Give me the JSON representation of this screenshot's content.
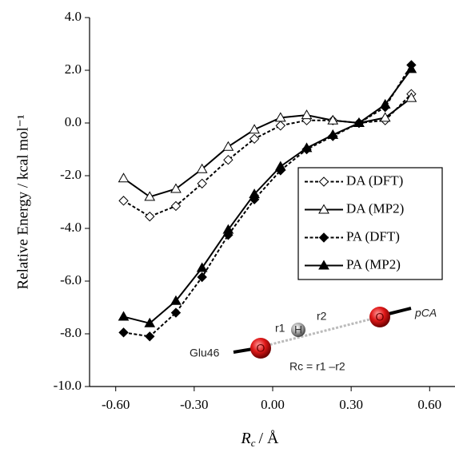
{
  "chart_data": {
    "type": "line",
    "ylabel": "Relative Energy / kcal mol⁻¹",
    "xlabel": {
      "symbol": "R",
      "subscript": "c",
      "unit": "/ Å"
    },
    "x": [
      -0.57,
      -0.47,
      -0.37,
      -0.27,
      -0.17,
      -0.07,
      0.03,
      0.13,
      0.23,
      0.33,
      0.43,
      0.53
    ],
    "series": [
      {
        "name": "DA (DFT)",
        "color": "#000000",
        "dash": true,
        "marker": "diamond",
        "filled": false,
        "values": [
          -2.95,
          -3.55,
          -3.15,
          -2.3,
          -1.4,
          -0.6,
          -0.1,
          0.1,
          0.1,
          0.0,
          0.1,
          1.1
        ]
      },
      {
        "name": "DA (MP2)",
        "color": "#000000",
        "dash": false,
        "marker": "triangle",
        "filled": false,
        "values": [
          -2.1,
          -2.8,
          -2.5,
          -1.75,
          -0.9,
          -0.25,
          0.2,
          0.3,
          0.1,
          0.0,
          0.2,
          0.95
        ]
      },
      {
        "name": "PA (DFT)",
        "color": "#000000",
        "dash": true,
        "marker": "diamond",
        "filled": true,
        "values": [
          -7.95,
          -8.1,
          -7.2,
          -5.85,
          -4.25,
          -2.9,
          -1.8,
          -1.0,
          -0.5,
          0.0,
          0.6,
          2.2
        ]
      },
      {
        "name": "PA (MP2)",
        "color": "#000000",
        "dash": false,
        "marker": "triangle",
        "filled": true,
        "values": [
          -7.35,
          -7.6,
          -6.75,
          -5.5,
          -4.05,
          -2.7,
          -1.65,
          -0.95,
          -0.45,
          0.0,
          0.7,
          2.05
        ]
      }
    ],
    "xlim": [
      -0.7,
      0.7
    ],
    "ylim": [
      -10.0,
      4.0
    ],
    "xticks": [
      {
        "value": -0.6,
        "label": "-0.60"
      },
      {
        "value": -0.3,
        "label": "-0.30"
      },
      {
        "value": 0,
        "label": "0.00"
      },
      {
        "value": 0.3,
        "label": "0.30"
      },
      {
        "value": 0.6,
        "label": "0.60"
      }
    ],
    "yticks": [
      {
        "value": -10,
        "label": "-10.0"
      },
      {
        "value": -8,
        "label": "-8.0"
      },
      {
        "value": -6,
        "label": "-6.0"
      },
      {
        "value": -4,
        "label": "-4.0"
      },
      {
        "value": -2,
        "label": "-2.0"
      },
      {
        "value": 0,
        "label": "0.0"
      },
      {
        "value": 2,
        "label": "2.0"
      },
      {
        "value": 4,
        "label": "4.0"
      }
    ],
    "grid": false,
    "legend": "center right",
    "inset": {
      "left_group": "Glu46",
      "r1": "r1",
      "hydrogen": "H",
      "r2": "r2",
      "oxygen_left": "O",
      "oxygen_right": "O",
      "right_group": "pCA",
      "equation": "Rc = r1 –r2"
    }
  }
}
